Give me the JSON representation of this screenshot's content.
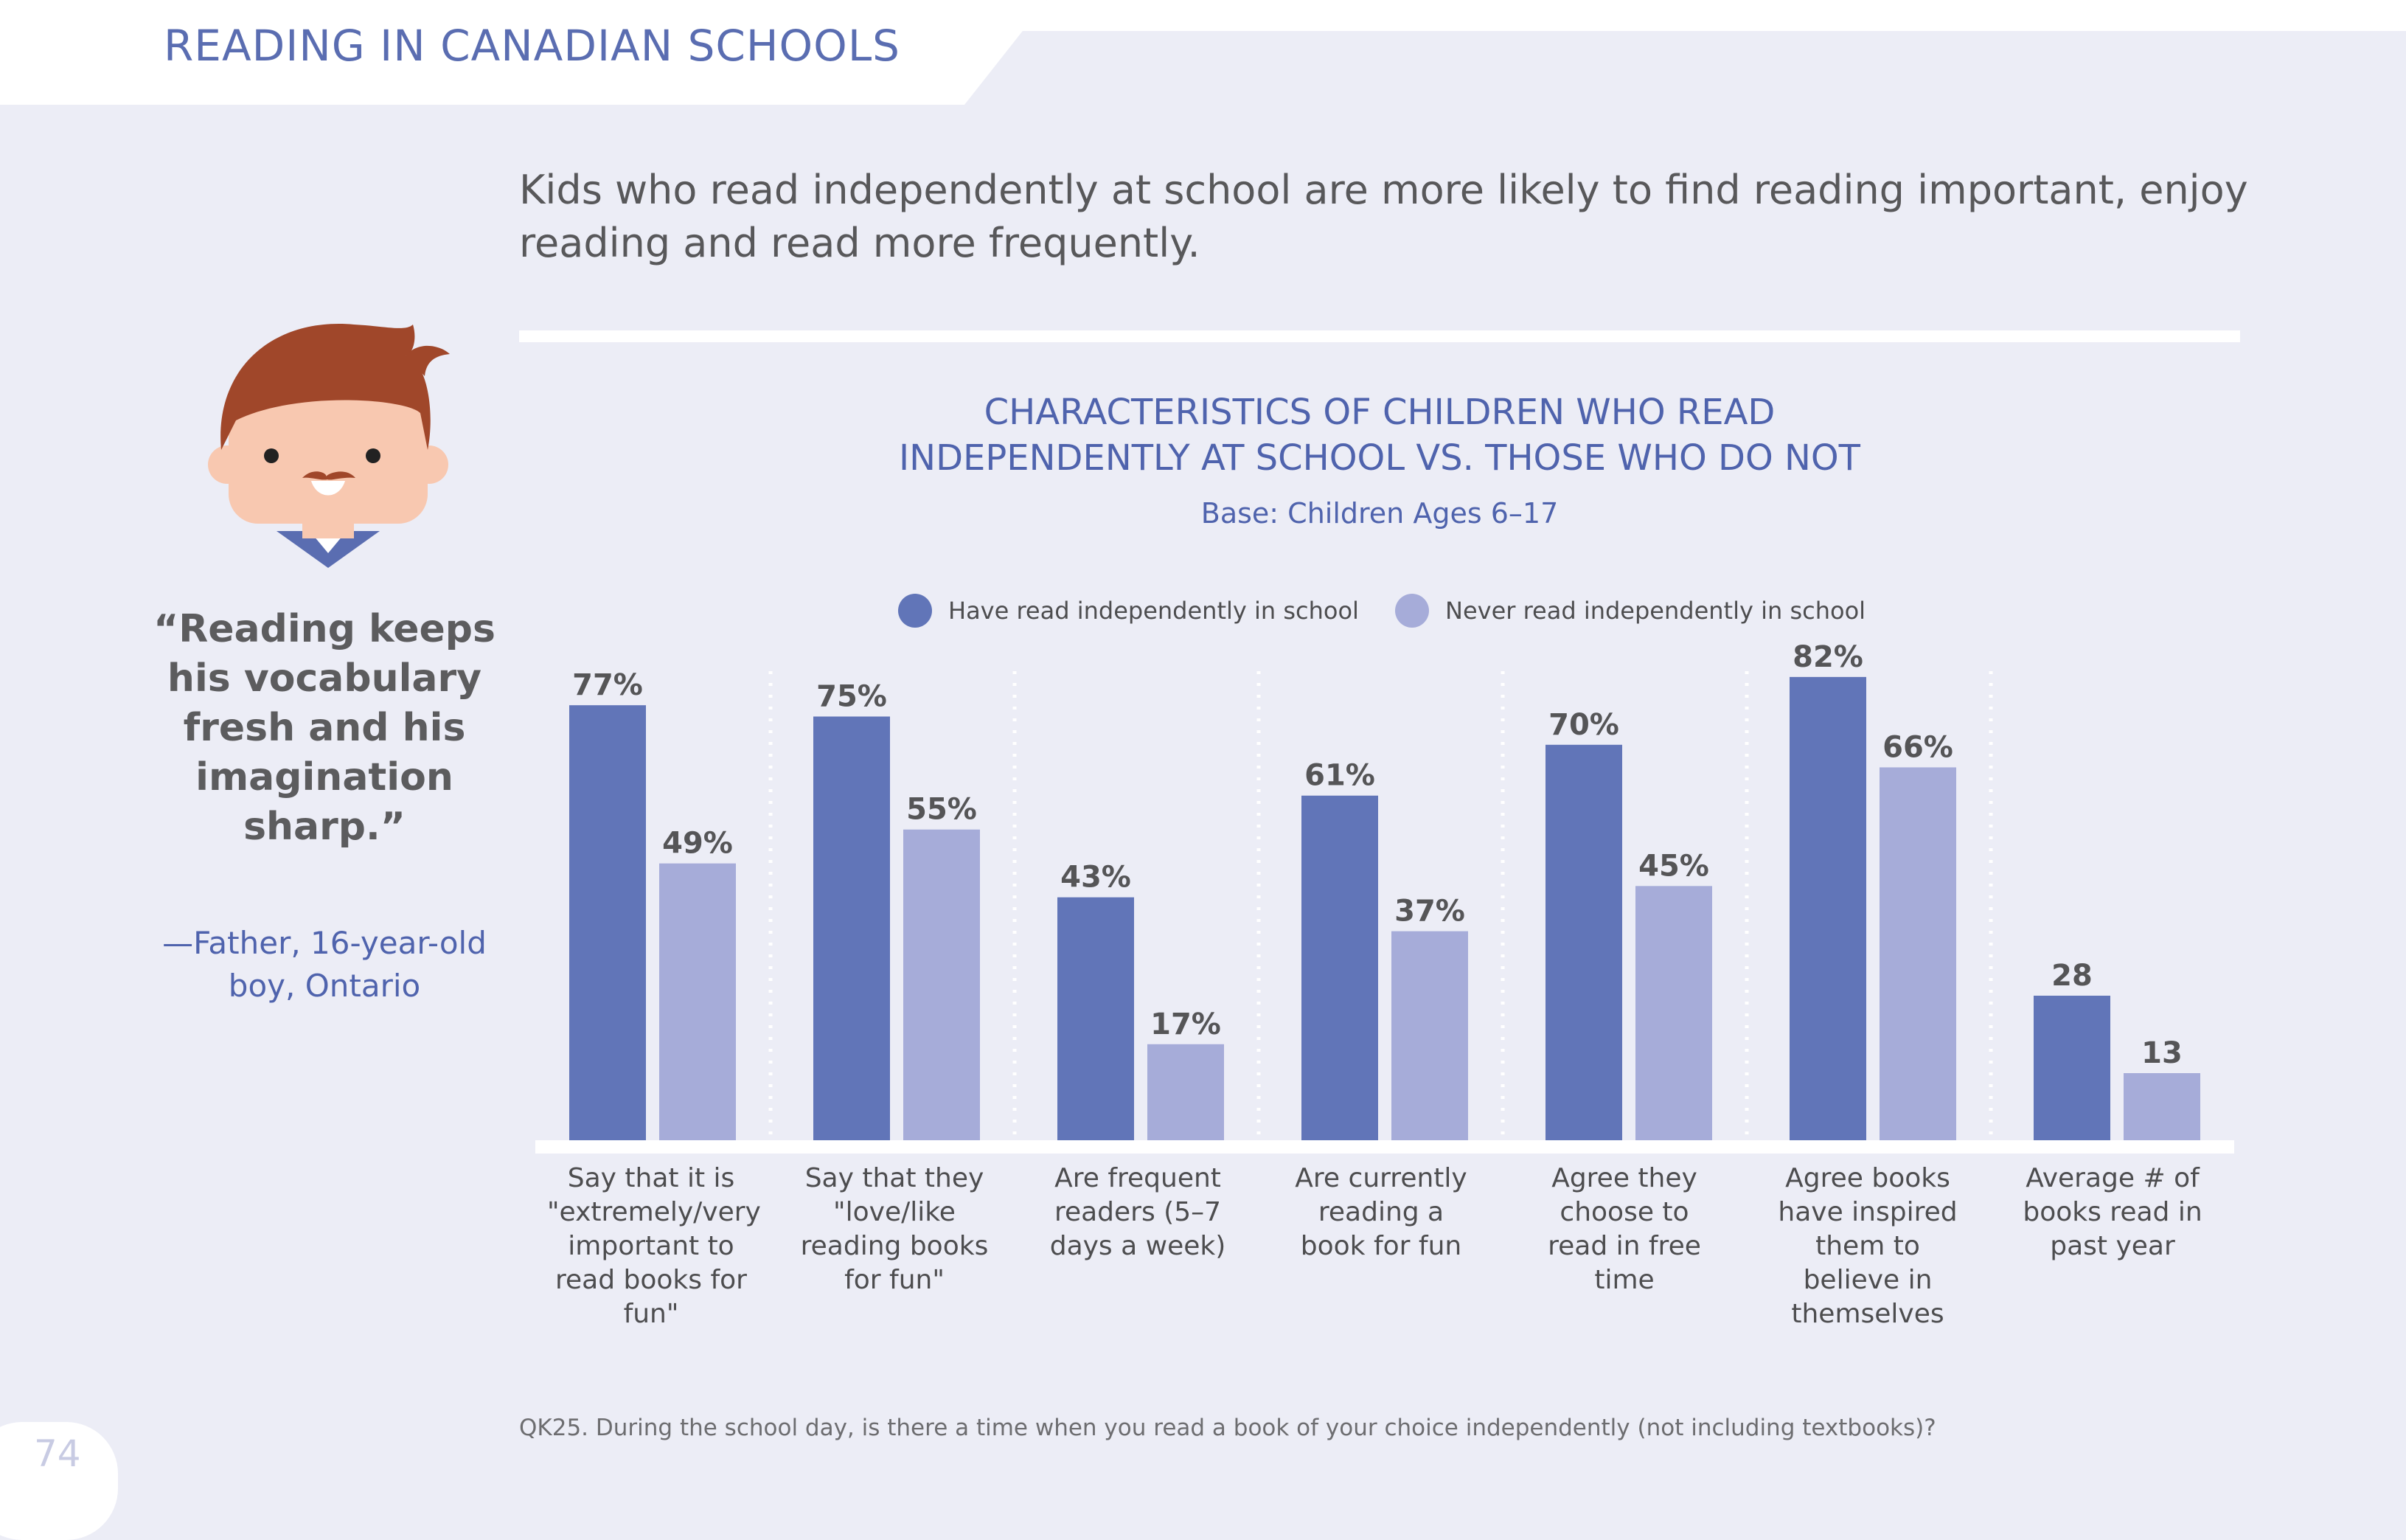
{
  "header": {
    "section_title": "READING IN CANADIAN SCHOOLS",
    "page_number": "74"
  },
  "headline": "Kids who read independently at school are more likely to find reading important, enjoy reading and read more frequently.",
  "quote": {
    "text": "“Reading keeps his vocabulary fresh and his imagination sharp.”",
    "attribution": "—Father, 16-year-old boy, Ontario"
  },
  "footnote": "QK25. During the school day, is there a time when you read a book of your choice independently (not including textbooks)?",
  "icons": {
    "illustration": "boy-avatar-icon"
  },
  "colors": {
    "series1": "#6175b8",
    "series2": "#a6acd9",
    "title": "#4f63ad",
    "hair": "#a0472a",
    "skin": "#f8c8b0"
  },
  "chart_data": {
    "type": "bar",
    "title": "CHARACTERISTICS OF CHILDREN WHO READ INDEPENDENTLY AT SCHOOL VS. THOSE WHO DO NOT",
    "subtitle": "Base: Children Ages 6–17",
    "legend_position": "top",
    "grid": false,
    "categories": [
      "Say that it is \"extremely/very important to read books for fun\"",
      "Say that they \"love/like reading books for fun\"",
      "Are frequent readers (5–7 days a week)",
      "Are currently reading a book for fun",
      "Agree they choose to read in free time",
      "Agree books have inspired them to believe in themselves",
      "Average # of books read in past year"
    ],
    "series": [
      {
        "name": "Have read independently in school",
        "values": [
          77,
          75,
          43,
          61,
          70,
          82,
          28
        ],
        "labels": [
          "77%",
          "75%",
          "43%",
          "61%",
          "70%",
          "82%",
          "28"
        ]
      },
      {
        "name": "Never read independently in school",
        "values": [
          49,
          55,
          17,
          37,
          45,
          66,
          13
        ],
        "labels": [
          "49%",
          "55%",
          "17%",
          "37%",
          "45%",
          "66%",
          "13"
        ]
      }
    ]
  }
}
